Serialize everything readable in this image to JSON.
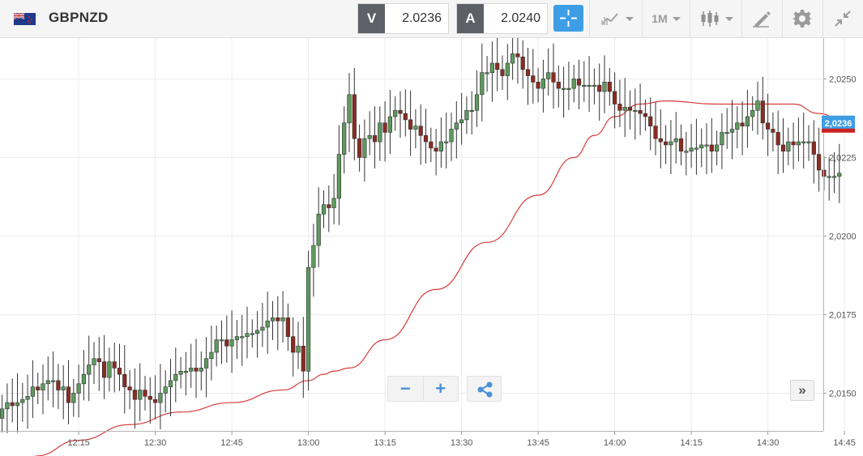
{
  "header": {
    "symbol": "GBPNZD",
    "flag_icon": "gb-nz-flag-icon",
    "sell": {
      "label": "V",
      "value": "2.0236"
    },
    "buy": {
      "label": "A",
      "value": "2.0240"
    },
    "crosshair_icon": "crosshair-icon",
    "chart_type_icon": "line-chart-icon",
    "timeframe": "1M",
    "candle_icon": "candlestick-icon",
    "draw_icon": "drawing-pen-icon",
    "settings_icon": "gear-icon",
    "collapse_icon": "collapse-arrows-icon"
  },
  "controls": {
    "zoom_out": "−",
    "zoom_in": "+",
    "share_icon": "share-icon",
    "scroll_icon": "fast-forward-icon",
    "scroll_label": "»"
  },
  "chart_data": {
    "type": "candlestick",
    "title": "",
    "xlabel": "",
    "ylabel": "",
    "ylim": [
      2.0138,
      2.0263
    ],
    "x_tick_labels": [
      "12:15",
      "12:30",
      "12:45",
      "13:00",
      "13:15",
      "13:30",
      "13:45",
      "14:00",
      "14:15",
      "14:30",
      "14:45"
    ],
    "x_tick_minutes": [
      15,
      30,
      45,
      60,
      75,
      90,
      105,
      120,
      135,
      150,
      165
    ],
    "y_ticks": [
      2.015,
      2.0175,
      2.02,
      2.0225,
      2.025
    ],
    "y_tick_labels": [
      "2,0150",
      "2,0175",
      "2,0200",
      "2,0225",
      "2,0250"
    ],
    "grid": true,
    "current_price": 2.0236,
    "current_price_label": "2,0236",
    "colors": {
      "up": "#5e9a5e",
      "down": "#8b2c22",
      "wick": "#333333",
      "moving_average": "#d63b3b",
      "price_tag": "#3d9ee6"
    },
    "close_series": [
      2.0145,
      2.0147,
      2.0146,
      2.0147,
      2.0148,
      2.0149,
      2.0152,
      2.0151,
      2.0153,
      2.0154,
      2.0154,
      2.0151,
      2.0152,
      2.0147,
      2.015,
      2.0153,
      2.0156,
      2.0159,
      2.0161,
      2.016,
      2.0155,
      2.016,
      2.0158,
      2.0156,
      2.0152,
      2.0151,
      2.0148,
      2.0151,
      2.0149,
      2.0148,
      2.0147,
      2.015,
      2.0152,
      2.0154,
      2.0156,
      2.0157,
      2.0157,
      2.0158,
      2.0157,
      2.0158,
      2.0161,
      2.0163,
      2.0167,
      2.0167,
      2.0165,
      2.0167,
      2.0168,
      2.0168,
      2.0169,
      2.0169,
      2.017,
      2.0171,
      2.0173,
      2.0174,
      2.0173,
      2.0174,
      2.0168,
      2.0163,
      2.0165,
      2.0157,
      2.019,
      2.0197,
      2.0207,
      2.021,
      2.0209,
      2.0212,
      2.0226,
      2.0236,
      2.0245,
      2.0231,
      2.0225,
      2.0231,
      2.0232,
      2.023,
      2.0236,
      2.0233,
      2.0238,
      2.024,
      2.0239,
      2.0237,
      2.0234,
      2.0235,
      2.0232,
      2.023,
      2.0228,
      2.0227,
      2.023,
      2.023,
      2.0234,
      2.0236,
      2.0237,
      2.024,
      2.024,
      2.0245,
      2.0252,
      2.0252,
      2.0255,
      2.0253,
      2.0251,
      2.0255,
      2.0258,
      2.0257,
      2.0253,
      2.0251,
      2.0249,
      2.0247,
      2.025,
      2.0252,
      2.0249,
      2.0247,
      2.0247,
      2.0247,
      2.025,
      2.0248,
      2.0248,
      2.0248,
      2.0248,
      2.0246,
      2.0249,
      2.0246,
      2.0242,
      2.024,
      2.0241,
      2.024,
      2.024,
      2.0239,
      2.0238,
      2.0235,
      2.0231,
      2.023,
      2.0229,
      2.023,
      2.0231,
      2.0227,
      2.0227,
      2.0228,
      2.0228,
      2.0229,
      2.0229,
      2.0227,
      2.0229,
      2.0233,
      2.0233,
      2.0234,
      2.0236,
      2.0235,
      2.0238,
      2.024,
      2.0243,
      2.0236,
      2.0234,
      2.0233,
      2.0229,
      2.0227,
      2.023,
      2.0229,
      2.023,
      2.023,
      2.023,
      2.0226,
      2.0221,
      2.0219,
      2.0219,
      2.0219,
      2.022
    ],
    "moving_average": {
      "x_minutes": [
        6.5,
        15,
        25,
        35,
        45,
        55,
        60,
        63,
        65,
        68,
        75,
        85,
        95,
        105,
        112,
        116,
        120,
        125,
        130,
        140,
        150,
        155,
        160,
        166
      ],
      "values": [
        2.013,
        2.0135,
        2.014,
        2.0144,
        2.0147,
        2.0151,
        2.0154,
        2.0156,
        2.0157,
        2.0158,
        2.0167,
        2.0183,
        2.0198,
        2.0213,
        2.0225,
        2.0232,
        2.0238,
        2.0242,
        2.0243,
        2.0242,
        2.0242,
        2.0242,
        2.0239,
        2.0235
      ]
    }
  }
}
